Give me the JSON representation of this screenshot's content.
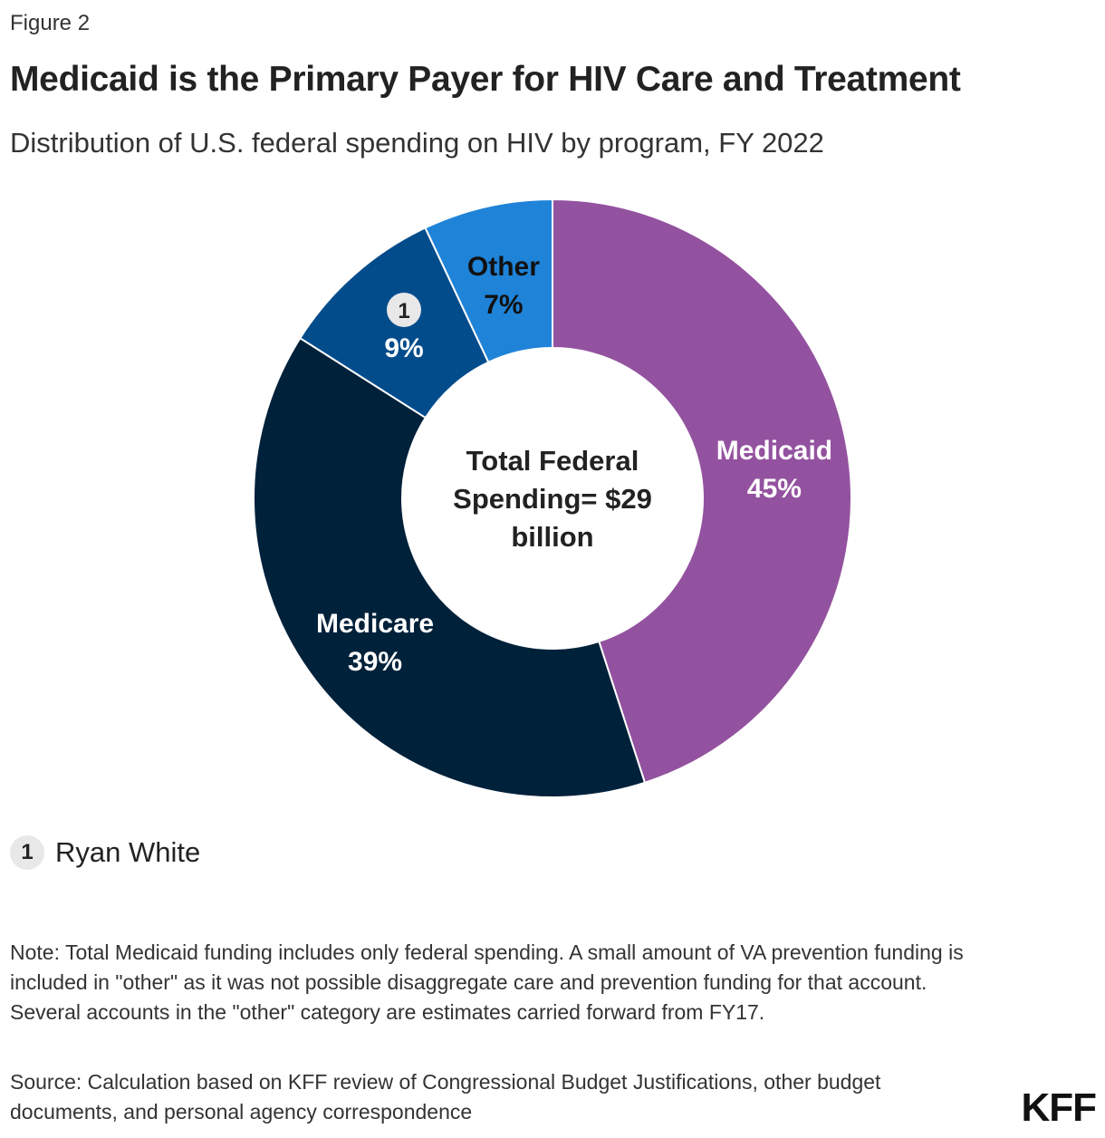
{
  "header": {
    "figure_label": "Figure 2",
    "title": "Medicaid is the Primary Payer for HIV Care and Treatment",
    "subtitle": "Distribution of U.S. federal spending on HIV by program, FY 2022"
  },
  "chart_data": {
    "type": "pie",
    "variant": "donut",
    "title": "Medicaid is the Primary Payer for HIV Care and Treatment",
    "subtitle": "Distribution of U.S. federal spending on HIV by program, FY 2022",
    "center_label": [
      "Total Federal",
      "Spending= $29",
      "billion"
    ],
    "slices": [
      {
        "name": "Medicaid",
        "value": 45,
        "label": "45%",
        "color": "#93529f",
        "text_color": "#ffffff"
      },
      {
        "name": "Medicare",
        "value": 39,
        "label": "39%",
        "color": "#00213a",
        "text_color": "#ffffff"
      },
      {
        "name": "Ryan White",
        "value": 9,
        "label": "9%",
        "color": "#034c8c",
        "text_color": "#ffffff",
        "badge": "1"
      },
      {
        "name": "Other",
        "value": 7,
        "label": "7%",
        "color": "#1f83d8",
        "text_color": "#111111"
      }
    ]
  },
  "legend": {
    "badge": "1",
    "label": "Ryan White"
  },
  "footer": {
    "note": "Note: Total Medicaid funding includes only federal spending. A small amount of VA prevention funding is included in \"other\" as it was not possible disaggregate care and prevention funding for that account. Several accounts in the \"other\" category are estimates carried forward from FY17.",
    "source": "Source: Calculation based on KFF review of Congressional Budget Justifications, other budget documents, and personal agency correspondence",
    "logo": "KFF"
  }
}
